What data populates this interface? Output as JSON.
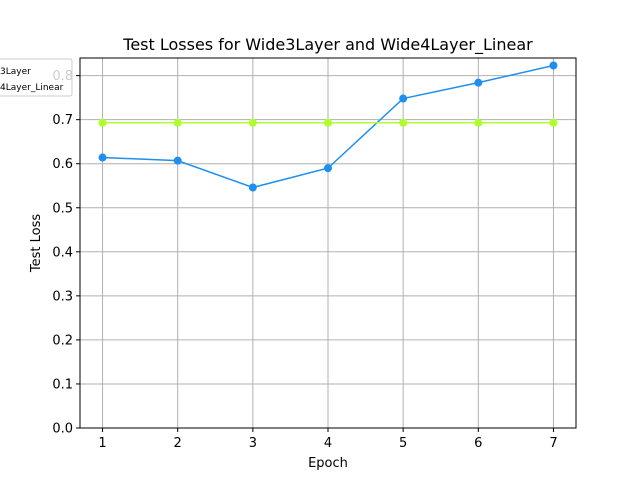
{
  "chart_data": {
    "type": "line",
    "title": "Test Losses for Wide3Layer and Wide4Layer_Linear",
    "xlabel": "Epoch",
    "ylabel": "Test Loss",
    "x": [
      1,
      2,
      3,
      4,
      5,
      6,
      7
    ],
    "xlim": [
      0.7,
      7.3
    ],
    "ylim": [
      0.0,
      0.84
    ],
    "xticks": [
      "1",
      "2",
      "3",
      "4",
      "5",
      "6",
      "7"
    ],
    "yticks": [
      "0.0",
      "0.1",
      "0.2",
      "0.3",
      "0.4",
      "0.5",
      "0.6",
      "0.7",
      "0.8"
    ],
    "grid": true,
    "legend_position": "upper-left, clipped",
    "series": [
      {
        "name": "Wide3Layer",
        "legend_text": "3Layer",
        "color": "#1e8ff0",
        "marker": "circle",
        "values": [
          0.614,
          0.607,
          0.546,
          0.59,
          0.748,
          0.784,
          0.823
        ]
      },
      {
        "name": "Wide4Layer_Linear",
        "legend_text": "4Layer_Linear",
        "color": "#adff2f",
        "marker": "circle",
        "values": [
          0.693,
          0.693,
          0.693,
          0.693,
          0.693,
          0.693,
          0.693
        ]
      }
    ]
  }
}
